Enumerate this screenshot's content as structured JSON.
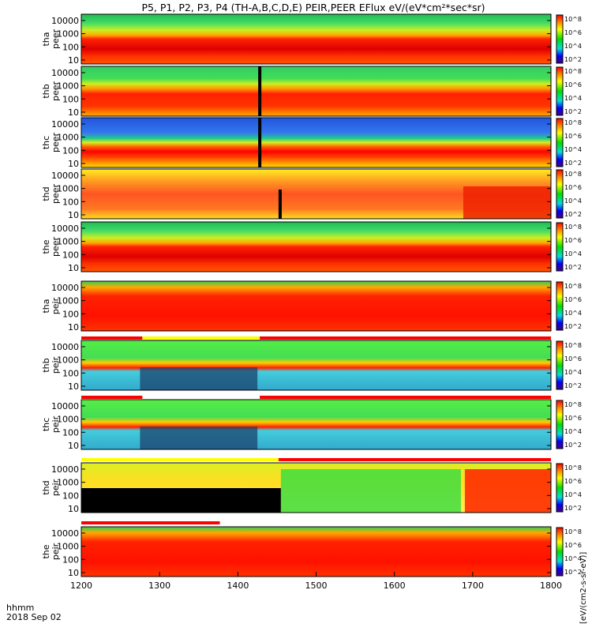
{
  "title": "P5, P1, P2, P3, P4 (TH-A,B,C,D,E) PEIR,PEER EFlux eV/(eV*cm²*sec*sr)",
  "time_axis": {
    "label_line1": "hhmm",
    "label_line2": "2018 Sep 02",
    "ticks": [
      "1200",
      "1300",
      "1400",
      "1500",
      "1600",
      "1700",
      "1800"
    ]
  },
  "colorbar_title": "[eV/(cm2-s-sr-eV)]",
  "energy_ticks": [
    "10",
    "100",
    "1000",
    "10000"
  ],
  "colors": {
    "black": "#000000",
    "red": "#ff0000",
    "yellow": "#ffff00",
    "green": "#00cc44",
    "blue": "#0000ff"
  },
  "chart_data": {
    "type": "heatmap",
    "x_units": "hhmm",
    "x_range": [
      "1200",
      "1800"
    ],
    "y_scale": "log",
    "y_range": [
      5,
      30000
    ],
    "panels": [
      {
        "id": "tha-peer",
        "probe": "tha",
        "label_top": "tha",
        "label_bottom": "peer",
        "colorbar_ticks": [
          "10^8",
          "10^6",
          "10^4",
          "10^2"
        ]
      },
      {
        "id": "thb-peer",
        "probe": "thb",
        "label_top": "thb",
        "label_bottom": "peer",
        "colorbar_ticks": [
          "10^8",
          "10^6",
          "10^4",
          "10^2"
        ]
      },
      {
        "id": "thc-peer",
        "probe": "thc",
        "label_top": "thc",
        "label_bottom": "peer",
        "colorbar_ticks": [
          "10^8",
          "10^6",
          "10^4",
          "10^2"
        ]
      },
      {
        "id": "thd-peer",
        "probe": "thd",
        "label_top": "thd",
        "label_bottom": "peer",
        "colorbar_ticks": [
          "10^8",
          "10^6",
          "10^4",
          "10^2"
        ]
      },
      {
        "id": "the-peer",
        "probe": "the",
        "label_top": "the",
        "label_bottom": "peer",
        "colorbar_ticks": [
          "10^8",
          "10^6",
          "10^4",
          "10^2"
        ]
      },
      {
        "id": "tha-peir",
        "probe": "tha",
        "label_top": "tha",
        "label_bottom": "peir",
        "colorbar_ticks": [
          "10^8",
          "10^6",
          "10^4",
          "10^2"
        ]
      },
      {
        "id": "thb-peir",
        "probe": "thb",
        "label_top": "thb",
        "label_bottom": "peir",
        "colorbar_ticks": [
          "10^8",
          "10^6",
          "10^4",
          "10^2"
        ]
      },
      {
        "id": "thc-peir",
        "probe": "thc",
        "label_top": "thc",
        "label_bottom": "peir",
        "colorbar_ticks": [
          "10^8",
          "10^6",
          "10^4",
          "10^2"
        ]
      },
      {
        "id": "thd-peir",
        "probe": "thd",
        "label_top": "thd",
        "label_bottom": "peir",
        "colorbar_ticks": [
          "10^8",
          "10^6",
          "10^4",
          "10^2"
        ]
      },
      {
        "id": "the-peir",
        "probe": "the",
        "label_top": "the",
        "label_bottom": "peir",
        "colorbar_ticks": [
          "10^8",
          "10^6",
          "10^4",
          "10^2"
        ]
      }
    ]
  }
}
